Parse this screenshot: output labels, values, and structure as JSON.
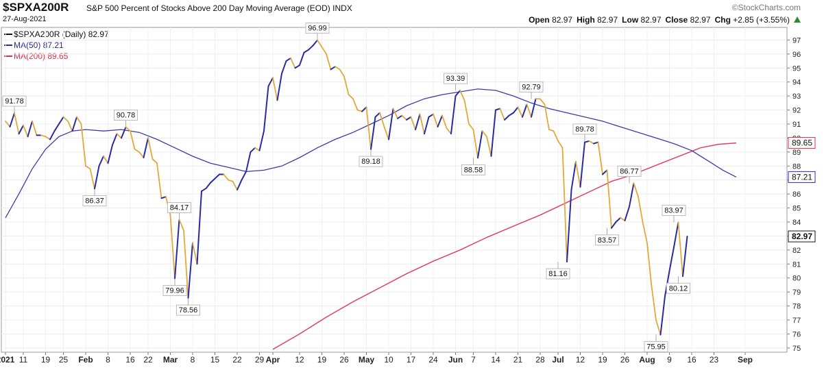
{
  "header": {
    "ticker": "$SPXA200R",
    "title": "S&P 500 Percent of Stocks Above 200 Day Moving Average (EOD)",
    "exchange": "INDX",
    "date": "27-Aug-2021",
    "brand": "©StockCharts.com",
    "open_label": "Open",
    "open": "82.97",
    "high_label": "High",
    "high": "82.97",
    "low_label": "Low",
    "low": "82.97",
    "close_label": "Close",
    "close": "82.97",
    "chg_label": "Chg",
    "chg": "+2.85 (+3.55%)"
  },
  "legend": [
    {
      "label": "$SPXA200R (Daily) 82.97",
      "color": "#111111"
    },
    {
      "label": "MA(50) 87.21",
      "color": "#2a2aa0"
    },
    {
      "label": "MA(200) 89.65",
      "color": "#d9304a"
    }
  ],
  "chart_data": {
    "type": "line",
    "colors": {
      "up": "#2a2aa0",
      "down": "#e0a93a",
      "ma50": "#3a3aa8",
      "ma200": "#e04060"
    },
    "ylim": [
      74.7,
      97.9
    ],
    "yticks": [
      75,
      76,
      77,
      78,
      79,
      80,
      81,
      82,
      83,
      84,
      85,
      86,
      87,
      88,
      89,
      90,
      91,
      92,
      93,
      94,
      95,
      96,
      97
    ],
    "xlim": [
      0,
      168
    ],
    "xticks": [
      {
        "label": "2021",
        "i": 0
      },
      {
        "label": "11",
        "i": 4
      },
      {
        "label": "19",
        "i": 9
      },
      {
        "label": "25",
        "i": 13
      },
      {
        "label": "Feb",
        "i": 18
      },
      {
        "label": "8",
        "i": 23
      },
      {
        "label": "16",
        "i": 28
      },
      {
        "label": "22",
        "i": 32
      },
      {
        "label": "Mar",
        "i": 37
      },
      {
        "label": "8",
        "i": 42
      },
      {
        "label": "15",
        "i": 47
      },
      {
        "label": "22",
        "i": 52
      },
      {
        "label": "29",
        "i": 57
      },
      {
        "label": "Apr",
        "i": 60
      },
      {
        "label": "12",
        "i": 66
      },
      {
        "label": "19",
        "i": 71
      },
      {
        "label": "26",
        "i": 76
      },
      {
        "label": "May",
        "i": 81
      },
      {
        "label": "10",
        "i": 86
      },
      {
        "label": "17",
        "i": 91
      },
      {
        "label": "24",
        "i": 96
      },
      {
        "label": "Jun",
        "i": 101
      },
      {
        "label": "7",
        "i": 105
      },
      {
        "label": "14",
        "i": 110
      },
      {
        "label": "21",
        "i": 115
      },
      {
        "label": "28",
        "i": 120
      },
      {
        "label": "Jul",
        "i": 124
      },
      {
        "label": "12",
        "i": 129
      },
      {
        "label": "19",
        "i": 134
      },
      {
        "label": "26",
        "i": 139
      },
      {
        "label": "Aug",
        "i": 144
      },
      {
        "label": "9",
        "i": 149
      },
      {
        "label": "16",
        "i": 154
      },
      {
        "label": "23",
        "i": 159
      },
      {
        "label": "Sep",
        "i": 166
      }
    ],
    "series": [
      {
        "name": "$SPXA200R",
        "values": [
          91.2,
          90.8,
          91.78,
          90.3,
          90.9,
          90.1,
          91.2,
          90.2,
          90.2,
          90.1,
          89.9,
          90.5,
          91.0,
          91.5,
          91.2,
          90.5,
          91.5,
          91.0,
          88.0,
          87.8,
          86.37,
          88.0,
          88.7,
          88.2,
          89.5,
          90.3,
          90.0,
          90.78,
          90.5,
          89.2,
          89.0,
          88.6,
          90.0,
          88.5,
          88.2,
          85.7,
          85.8,
          84.5,
          79.96,
          84.17,
          83.4,
          78.56,
          82.5,
          81.0,
          86.2,
          86.4,
          86.8,
          87.1,
          87.4,
          87.4,
          87.0,
          86.9,
          86.3,
          87.0,
          87.6,
          89.0,
          89.3,
          89.1,
          90.5,
          93.7,
          94.3,
          92.7,
          94.6,
          95.5,
          95.7,
          95.0,
          95.2,
          96.1,
          96.3,
          96.6,
          96.99,
          96.5,
          96.0,
          94.9,
          95.1,
          94.9,
          94.4,
          93.1,
          92.8,
          92.0,
          91.9,
          92.2,
          89.18,
          91.5,
          91.8,
          90.8,
          89.9,
          92.1,
          91.4,
          91.6,
          91.3,
          91.5,
          90.6,
          91.7,
          90.3,
          91.5,
          91.7,
          90.8,
          91.6,
          90.7,
          90.3,
          93.0,
          93.39,
          92.7,
          91.0,
          90.6,
          88.58,
          90.5,
          90.1,
          88.7,
          92.0,
          92.1,
          91.3,
          91.6,
          91.8,
          92.2,
          91.5,
          92.4,
          91.5,
          92.8,
          92.79,
          92.4,
          90.6,
          90.5,
          89.8,
          89.3,
          81.16,
          86.3,
          88.3,
          86.5,
          89.7,
          89.78,
          89.6,
          89.7,
          87.4,
          87.7,
          83.57,
          84.0,
          84.3,
          84.1,
          85.1,
          86.77,
          85.8,
          84.0,
          82.5,
          79.4,
          77.0,
          75.95,
          78.7,
          80.5,
          82.2,
          83.97,
          80.12,
          82.97
        ]
      },
      {
        "name": "MA(50)",
        "points": [
          [
            0,
            84.3
          ],
          [
            3,
            86.0
          ],
          [
            6,
            87.8
          ],
          [
            9,
            89.2
          ],
          [
            12,
            90.1
          ],
          [
            15,
            90.5
          ],
          [
            18,
            90.6
          ],
          [
            22,
            90.5
          ],
          [
            26,
            90.6
          ],
          [
            30,
            90.4
          ],
          [
            34,
            89.9
          ],
          [
            38,
            89.3
          ],
          [
            42,
            88.7
          ],
          [
            46,
            88.2
          ],
          [
            50,
            87.9
          ],
          [
            54,
            87.6
          ],
          [
            58,
            87.7
          ],
          [
            62,
            88.0
          ],
          [
            66,
            88.6
          ],
          [
            70,
            89.3
          ],
          [
            74,
            89.9
          ],
          [
            78,
            90.4
          ],
          [
            82,
            91.0
          ],
          [
            86,
            91.6
          ],
          [
            90,
            92.3
          ],
          [
            94,
            92.8
          ],
          [
            98,
            93.1
          ],
          [
            102,
            93.3
          ],
          [
            106,
            93.5
          ],
          [
            110,
            93.4
          ],
          [
            114,
            93.0
          ],
          [
            118,
            92.5
          ],
          [
            122,
            92.1
          ],
          [
            126,
            91.8
          ],
          [
            130,
            91.5
          ],
          [
            134,
            91.2
          ],
          [
            138,
            90.8
          ],
          [
            142,
            90.4
          ],
          [
            146,
            90.0
          ],
          [
            150,
            89.6
          ],
          [
            154,
            89.1
          ],
          [
            158,
            88.3
          ],
          [
            161,
            87.7
          ],
          [
            164,
            87.21
          ]
        ]
      },
      {
        "name": "MA(200)",
        "points": [
          [
            60,
            74.9
          ],
          [
            66,
            76.0
          ],
          [
            72,
            77.2
          ],
          [
            78,
            78.3
          ],
          [
            84,
            79.3
          ],
          [
            90,
            80.3
          ],
          [
            96,
            81.2
          ],
          [
            102,
            82.0
          ],
          [
            108,
            82.9
          ],
          [
            114,
            83.7
          ],
          [
            120,
            84.5
          ],
          [
            126,
            85.4
          ],
          [
            132,
            86.3
          ],
          [
            136,
            86.9
          ],
          [
            140,
            87.3
          ],
          [
            144,
            87.8
          ],
          [
            148,
            88.3
          ],
          [
            152,
            88.8
          ],
          [
            156,
            89.3
          ],
          [
            160,
            89.55
          ],
          [
            164,
            89.65
          ]
        ]
      }
    ],
    "annotations": [
      {
        "i": 2,
        "text": "91.78"
      },
      {
        "i": 20,
        "text": "86.37"
      },
      {
        "i": 27,
        "text": "90.78"
      },
      {
        "i": 38,
        "text": "79.96"
      },
      {
        "i": 39,
        "text": "84.17"
      },
      {
        "i": 41,
        "text": "78.56"
      },
      {
        "i": 70,
        "text": "96.99"
      },
      {
        "i": 82,
        "text": "89.18"
      },
      {
        "i": 101,
        "text": "93.39"
      },
      {
        "i": 105,
        "text": "88.58"
      },
      {
        "i": 118,
        "text": "92.79"
      },
      {
        "i": 124,
        "text": "81.16"
      },
      {
        "i": 130,
        "text": "89.78"
      },
      {
        "i": 135,
        "text": "83.57"
      },
      {
        "i": 140,
        "text": "86.77"
      },
      {
        "i": 146,
        "text": "75.95"
      },
      {
        "i": 150,
        "text": "83.97"
      },
      {
        "i": 151,
        "text": "80.12"
      }
    ],
    "right_labels": [
      {
        "value": 89.65,
        "text": "89.65",
        "color": "#d9304a"
      },
      {
        "value": 87.21,
        "text": "87.21",
        "color": "#2a2aa0"
      },
      {
        "value": 82.97,
        "text": "82.97",
        "color": "#111111"
      }
    ]
  }
}
